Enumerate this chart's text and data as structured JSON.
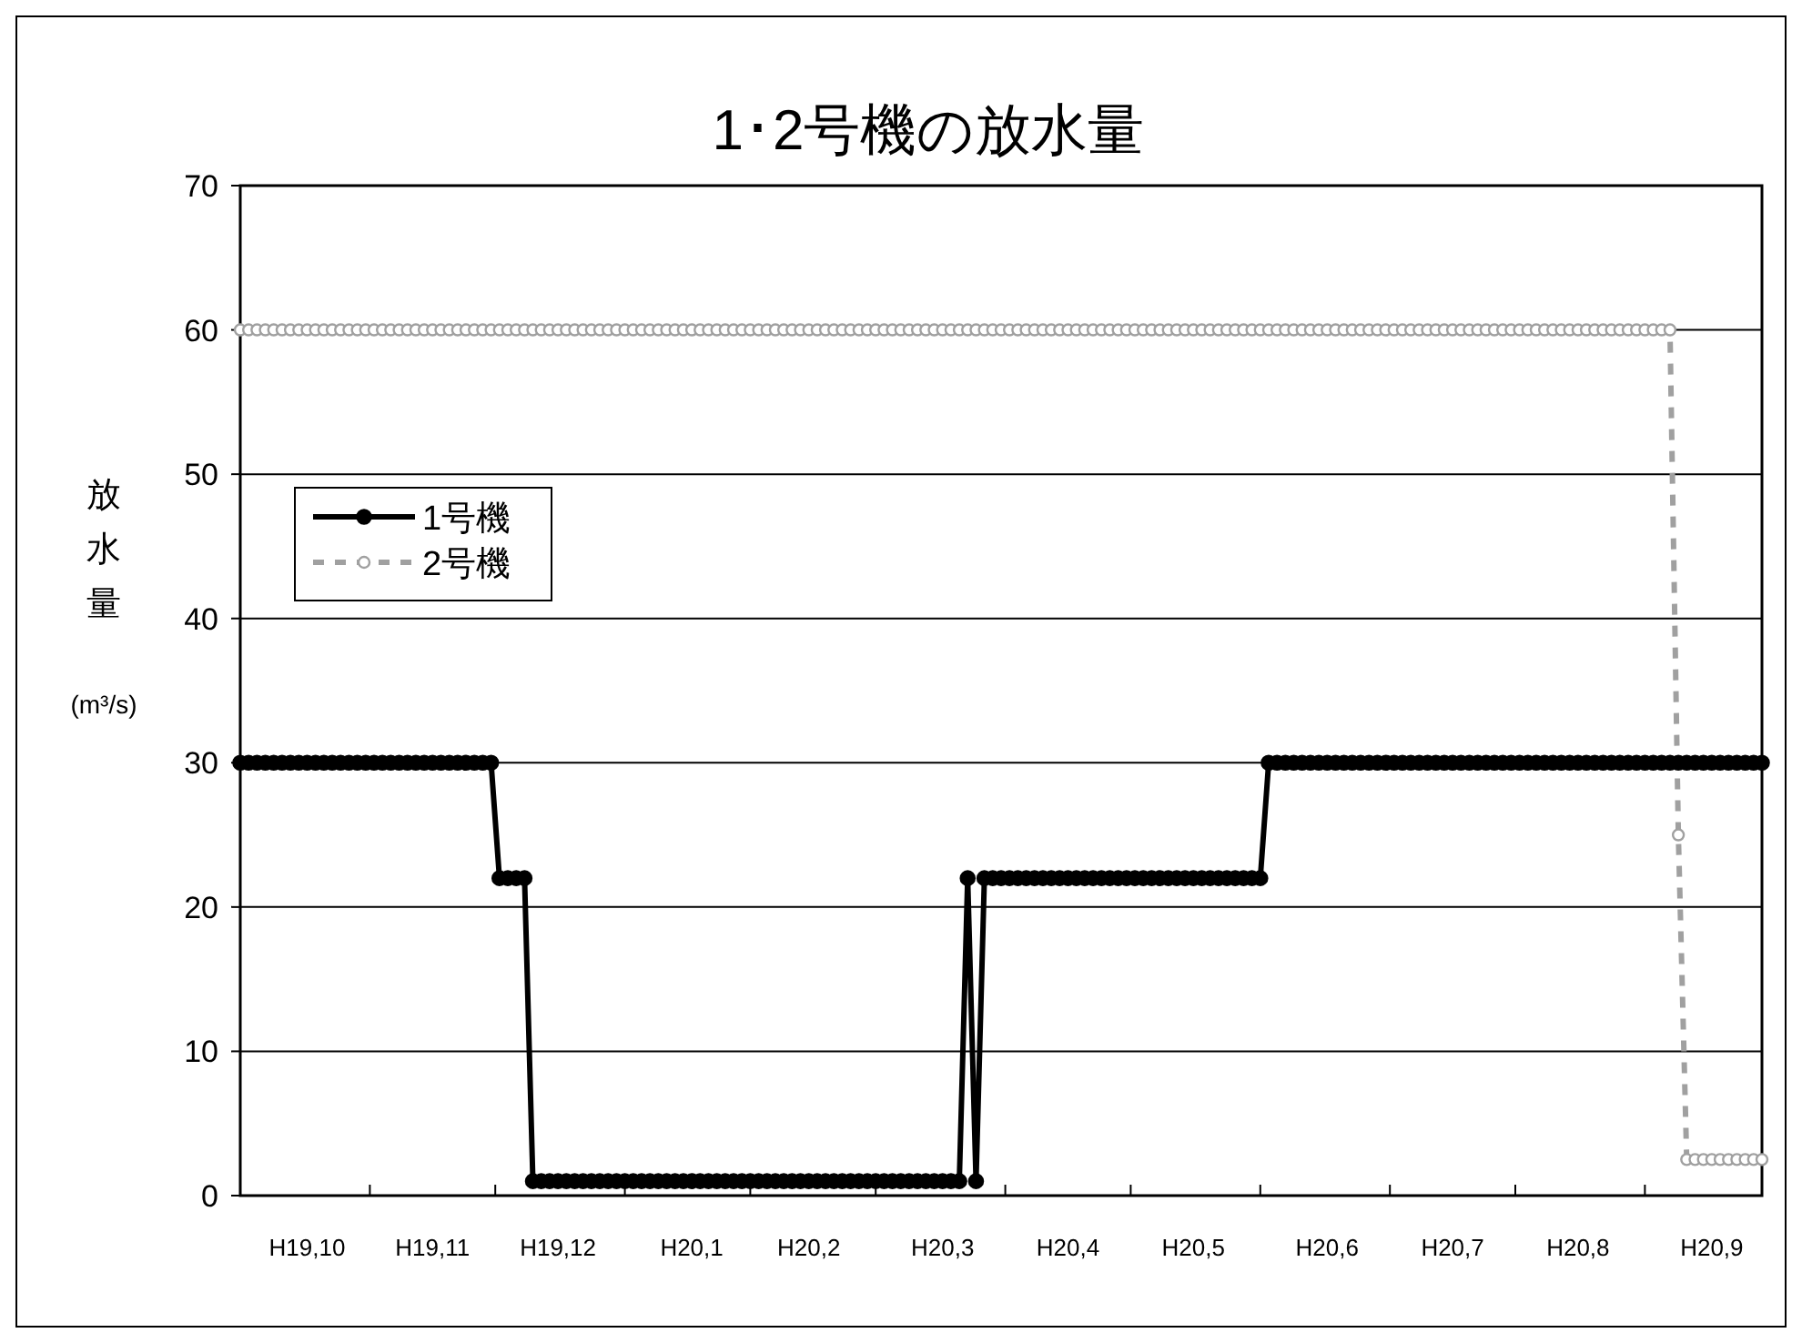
{
  "chart_data": {
    "type": "line",
    "title": "1･2号機の放水量",
    "ylabel": "放水量 (m³/s)",
    "ylim": [
      0,
      70
    ],
    "yticks": [
      0,
      10,
      20,
      30,
      40,
      50,
      60,
      70
    ],
    "categories": [
      null,
      null,
      null,
      null,
      null,
      null,
      null,
      null,
      "H19,10",
      null,
      null,
      null,
      null,
      null,
      null,
      null,
      null,
      null,
      null,
      null,
      null,
      null,
      null,
      "H19,11",
      null,
      null,
      null,
      null,
      null,
      null,
      null,
      null,
      null,
      null,
      null,
      null,
      null,
      null,
      "H19,12",
      null,
      null,
      null,
      null,
      null,
      null,
      null,
      null,
      null,
      null,
      null,
      null,
      null,
      null,
      null,
      "H20,1",
      null,
      null,
      null,
      null,
      null,
      null,
      null,
      null,
      null,
      null,
      null,
      null,
      null,
      "H20,2",
      null,
      null,
      null,
      null,
      null,
      null,
      null,
      null,
      null,
      null,
      null,
      null,
      null,
      null,
      null,
      "H20,3",
      null,
      null,
      null,
      null,
      null,
      null,
      null,
      null,
      null,
      null,
      null,
      null,
      null,
      null,
      "H20,4",
      null,
      null,
      null,
      null,
      null,
      null,
      null,
      null,
      null,
      null,
      null,
      null,
      null,
      null,
      "H20,5",
      null,
      null,
      null,
      null,
      null,
      null,
      null,
      null,
      null,
      null,
      null,
      null,
      null,
      null,
      null,
      "H20,6",
      null,
      null,
      null,
      null,
      null,
      null,
      null,
      null,
      null,
      null,
      null,
      null,
      null,
      null,
      "H20,7",
      null,
      null,
      null,
      null,
      null,
      null,
      null,
      null,
      null,
      null,
      null,
      null,
      null,
      null,
      "H20,8",
      null,
      null,
      null,
      null,
      null,
      null,
      null,
      null,
      null,
      null,
      null,
      null,
      null,
      null,
      null,
      "H20,9",
      null,
      null,
      null,
      null,
      null,
      null
    ],
    "grid": "y",
    "legend": "top left",
    "marker": "circle",
    "series": [
      {
        "name": "1号機",
        "color": "#000000",
        "line_style": "solid",
        "values": [
          30,
          30,
          30,
          30,
          30,
          30,
          30,
          30,
          30,
          30,
          30,
          30,
          30,
          30,
          30,
          30,
          30,
          30,
          30,
          30,
          30,
          30,
          30,
          30,
          30,
          30,
          30,
          30,
          30,
          30,
          30,
          22,
          22,
          22,
          22,
          1,
          1,
          1,
          1,
          1,
          1,
          1,
          1,
          1,
          1,
          1,
          1,
          1,
          1,
          1,
          1,
          1,
          1,
          1,
          1,
          1,
          1,
          1,
          1,
          1,
          1,
          1,
          1,
          1,
          1,
          1,
          1,
          1,
          1,
          1,
          1,
          1,
          1,
          1,
          1,
          1,
          1,
          1,
          1,
          1,
          1,
          1,
          1,
          1,
          1,
          1,
          1,
          22,
          1,
          22,
          22,
          22,
          22,
          22,
          22,
          22,
          22,
          22,
          22,
          22,
          22,
          22,
          22,
          22,
          22,
          22,
          22,
          22,
          22,
          22,
          22,
          22,
          22,
          22,
          22,
          22,
          22,
          22,
          22,
          22,
          22,
          22,
          22,
          30,
          30,
          30,
          30,
          30,
          30,
          30,
          30,
          30,
          30,
          30,
          30,
          30,
          30,
          30,
          30,
          30,
          30,
          30,
          30,
          30,
          30,
          30,
          30,
          30,
          30,
          30,
          30,
          30,
          30,
          30,
          30,
          30,
          30,
          30,
          30,
          30,
          30,
          30,
          30,
          30,
          30,
          30,
          30,
          30,
          30,
          30,
          30,
          30,
          30,
          30,
          30,
          30,
          30,
          30,
          30,
          30,
          30,
          30,
          30
        ]
      },
      {
        "name": "2号機",
        "color": "#a0a0a0",
        "line_style": "dashed",
        "values": [
          60,
          60,
          60,
          60,
          60,
          60,
          60,
          60,
          60,
          60,
          60,
          60,
          60,
          60,
          60,
          60,
          60,
          60,
          60,
          60,
          60,
          60,
          60,
          60,
          60,
          60,
          60,
          60,
          60,
          60,
          60,
          60,
          60,
          60,
          60,
          60,
          60,
          60,
          60,
          60,
          60,
          60,
          60,
          60,
          60,
          60,
          60,
          60,
          60,
          60,
          60,
          60,
          60,
          60,
          60,
          60,
          60,
          60,
          60,
          60,
          60,
          60,
          60,
          60,
          60,
          60,
          60,
          60,
          60,
          60,
          60,
          60,
          60,
          60,
          60,
          60,
          60,
          60,
          60,
          60,
          60,
          60,
          60,
          60,
          60,
          60,
          60,
          60,
          60,
          60,
          60,
          60,
          60,
          60,
          60,
          60,
          60,
          60,
          60,
          60,
          60,
          60,
          60,
          60,
          60,
          60,
          60,
          60,
          60,
          60,
          60,
          60,
          60,
          60,
          60,
          60,
          60,
          60,
          60,
          60,
          60,
          60,
          60,
          60,
          60,
          60,
          60,
          60,
          60,
          60,
          60,
          60,
          60,
          60,
          60,
          60,
          60,
          60,
          60,
          60,
          60,
          60,
          60,
          60,
          60,
          60,
          60,
          60,
          60,
          60,
          60,
          60,
          60,
          60,
          60,
          60,
          60,
          60,
          60,
          60,
          60,
          60,
          60,
          60,
          60,
          60,
          60,
          60,
          60,
          60,
          60,
          60,
          25,
          2.5,
          2.5,
          2.5,
          2.5,
          2.5,
          2.5,
          2.5,
          2.5,
          2.5,
          2.5
        ]
      }
    ]
  }
}
